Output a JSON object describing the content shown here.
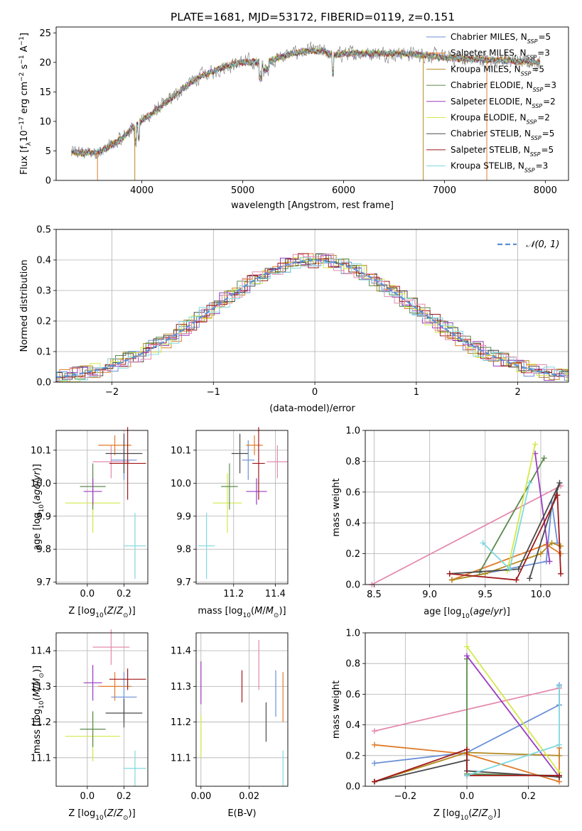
{
  "figure_title": "PLATE=1681, MJD=53172, FIBERID=0119, z=0.151",
  "colors": {
    "Chabrier MILES": "#6a8fd6",
    "Salpeter MILES": "#e07b2a",
    "Kroupa MILES": "#b48a1e",
    "Chabrier ELODIE": "#5a8a4a",
    "Salpeter ELODIE": "#9a3cbf",
    "Kroupa ELODIE": "#d4e84a",
    "Chabrier STELIB": "#4a4a4a",
    "Salpeter STELIB": "#a01818",
    "Kroupa STELIB": "#7fd8e0",
    "extra_pink": "#e48aae",
    "normal_curve": "#5b8ed6"
  },
  "chart_data": [
    {
      "type": "line",
      "id": "spectrum",
      "xlabel": "wavelength [Angstrom, rest frame]",
      "ylabel": "Flux [f_λ 10^-17 erg cm^-2 s^-1 A^-1]",
      "xlim": [
        3150,
        8230
      ],
      "ylim": [
        0,
        26
      ],
      "xticks": [
        4000,
        5000,
        6000,
        7000,
        8000
      ],
      "yticks": [
        0,
        5,
        10,
        15,
        20,
        25
      ],
      "grid": false,
      "legend_position": "upper-right",
      "legend": [
        {
          "name": "Chabrier MILES",
          "label": "Chabrier MILES, N",
          "sub": "SSP",
          "suffix": "=5"
        },
        {
          "name": "Salpeter MILES",
          "label": "Salpeter MILES, N",
          "sub": "SSP",
          "suffix": "=3"
        },
        {
          "name": "Kroupa MILES",
          "label": "Kroupa MILES, N",
          "sub": "SSP",
          "suffix": "=5"
        },
        {
          "name": "Chabrier ELODIE",
          "label": "Chabrier ELODIE, N",
          "sub": "SSP",
          "suffix": "=3"
        },
        {
          "name": "Salpeter ELODIE",
          "label": "Salpeter ELODIE, N",
          "sub": "SSP",
          "suffix": "=2"
        },
        {
          "name": "Kroupa ELODIE",
          "label": "Kroupa ELODIE, N",
          "sub": "SSP",
          "suffix": "=2"
        },
        {
          "name": "Chabrier STELIB",
          "label": "Chabrier STELIB, N",
          "sub": "SSP",
          "suffix": "=5"
        },
        {
          "name": "Salpeter STELIB",
          "label": "Salpeter STELIB, N",
          "sub": "SSP",
          "suffix": "=5"
        },
        {
          "name": "Kroupa STELIB",
          "label": "Kroupa STELIB, N",
          "sub": "SSP",
          "suffix": "=3"
        }
      ],
      "envelope": [
        [
          3300,
          4.8
        ],
        [
          3400,
          4.6
        ],
        [
          3500,
          4.7
        ],
        [
          3600,
          4.9
        ],
        [
          3700,
          6.0
        ],
        [
          3800,
          7.0
        ],
        [
          3900,
          8.8
        ],
        [
          4000,
          10.2
        ],
        [
          4100,
          11.3
        ],
        [
          4200,
          12.6
        ],
        [
          4300,
          14.0
        ],
        [
          4400,
          15.5
        ],
        [
          4500,
          16.8
        ],
        [
          4600,
          17.8
        ],
        [
          4700,
          18.4
        ],
        [
          4800,
          19.2
        ],
        [
          4900,
          19.7
        ],
        [
          5000,
          20.0
        ],
        [
          5100,
          20.1
        ],
        [
          5200,
          19.8
        ],
        [
          5300,
          20.4
        ],
        [
          5400,
          21.0
        ],
        [
          5500,
          21.5
        ],
        [
          5600,
          21.8
        ],
        [
          5700,
          22.0
        ],
        [
          5800,
          21.8
        ],
        [
          5900,
          21.2
        ],
        [
          6000,
          21.5
        ],
        [
          6200,
          21.6
        ],
        [
          6400,
          21.5
        ],
        [
          6600,
          21.5
        ],
        [
          6800,
          21.3
        ],
        [
          7000,
          20.8
        ],
        [
          7200,
          20.6
        ],
        [
          7400,
          20.5
        ],
        [
          7600,
          20.3
        ],
        [
          7800,
          20.1
        ],
        [
          7950,
          20.0
        ]
      ],
      "spike_lines": [
        {
          "series": "Salpeter MILES",
          "x": 3560
        },
        {
          "series": "Kroupa MILES",
          "x": 3930
        },
        {
          "series": "Kroupa MILES",
          "x": 6790
        },
        {
          "series": "Salpeter MILES",
          "x": 7420
        }
      ]
    },
    {
      "type": "line",
      "id": "residuals",
      "xlabel": "(data-model)/error",
      "ylabel": "Normed distribution",
      "xlim": [
        -2.55,
        2.5
      ],
      "ylim": [
        0,
        0.5
      ],
      "xticks": [
        -2,
        -1,
        0,
        1,
        2
      ],
      "xtick_labels": [
        "−2",
        "−1",
        "0",
        "1",
        "2"
      ],
      "yticks": [
        0.0,
        0.1,
        0.2,
        0.3,
        0.4,
        0.5
      ],
      "grid": true,
      "legend_position": "upper-right",
      "legend": [
        {
          "name": "normal",
          "label": "𝒩(0, 1)"
        }
      ],
      "bin_width": 0.1
    },
    {
      "type": "scatter",
      "id": "age_vs_Z",
      "xlabel": "Z [log10(Z/Z☉)]",
      "ylabel": "age [log10(age/yr)]",
      "xlim": [
        -0.17,
        0.33
      ],
      "ylim": [
        9.695,
        10.16
      ],
      "xticks": [
        0.0,
        0.2
      ],
      "xtick_labels": [
        "0.0",
        "0.2"
      ],
      "yticks": [
        9.7,
        9.8,
        9.9,
        10.0,
        10.1
      ],
      "ytick_labels": [
        "9.7",
        "9.8",
        "9.9",
        "10.0",
        "10.1"
      ],
      "grid": true,
      "points": [
        {
          "series": "Kroupa ELODIE",
          "x": 0.03,
          "xerr": 0.15,
          "y": 9.94,
          "yerr": 0.09
        },
        {
          "series": "Chabrier ELODIE",
          "x": 0.03,
          "xerr": 0.07,
          "y": 9.99,
          "yerr": 0.07
        },
        {
          "series": "Salpeter ELODIE",
          "x": 0.03,
          "xerr": 0.05,
          "y": 9.975,
          "yerr": 0.04
        },
        {
          "series": "extra_pink",
          "x": 0.13,
          "xerr": 0.1,
          "y": 10.065,
          "yerr": 0.05
        },
        {
          "series": "Salpeter MILES",
          "x": 0.15,
          "xerr": 0.09,
          "y": 10.115,
          "yerr": 0.03
        },
        {
          "series": "Chabrier MILES",
          "x": 0.2,
          "xerr": 0.07,
          "y": 10.07,
          "yerr": 0.06
        },
        {
          "series": "Chabrier STELIB",
          "x": 0.2,
          "xerr": 0.1,
          "y": 10.09,
          "yerr": 0.06
        },
        {
          "series": "Salpeter STELIB",
          "x": 0.22,
          "xerr": 0.1,
          "y": 10.06,
          "yerr": 0.11
        },
        {
          "series": "Kroupa STELIB",
          "x": 0.26,
          "xerr": 0.06,
          "y": 9.81,
          "yerr": 0.1
        }
      ]
    },
    {
      "type": "scatter",
      "id": "age_vs_mass",
      "xlabel": "mass [log10(M/M☉)]",
      "ylabel": "",
      "xlim": [
        11.02,
        11.46
      ],
      "ylim": [
        9.695,
        10.16
      ],
      "xticks": [
        11.2,
        11.4
      ],
      "xtick_labels": [
        "11.2",
        "11.4"
      ],
      "yticks": [
        9.7,
        9.8,
        9.9,
        10.0,
        10.1
      ],
      "ytick_labels": [
        "9.7",
        "9.8",
        "9.9",
        "10.0",
        "10.1"
      ],
      "grid": true,
      "points": [
        {
          "series": "Kroupa STELIB",
          "x": 11.07,
          "xerr": 0.04,
          "y": 9.81,
          "yerr": 0.1
        },
        {
          "series": "Kroupa ELODIE",
          "x": 11.17,
          "xerr": 0.07,
          "y": 9.94,
          "yerr": 0.09
        },
        {
          "series": "Chabrier ELODIE",
          "x": 11.18,
          "xerr": 0.04,
          "y": 9.99,
          "yerr": 0.07
        },
        {
          "series": "Chabrier STELIB",
          "x": 11.23,
          "xerr": 0.04,
          "y": 10.09,
          "yerr": 0.06
        },
        {
          "series": "Chabrier MILES",
          "x": 11.27,
          "xerr": 0.03,
          "y": 10.07,
          "yerr": 0.06
        },
        {
          "series": "Salpeter MILES",
          "x": 11.3,
          "xerr": 0.04,
          "y": 10.115,
          "yerr": 0.03
        },
        {
          "series": "Salpeter ELODIE",
          "x": 11.31,
          "xerr": 0.05,
          "y": 9.975,
          "yerr": 0.04
        },
        {
          "series": "Salpeter STELIB",
          "x": 11.32,
          "xerr": 0.03,
          "y": 10.06,
          "yerr": 0.11
        },
        {
          "series": "extra_pink",
          "x": 11.41,
          "xerr": 0.05,
          "y": 10.065,
          "yerr": 0.05
        }
      ]
    },
    {
      "type": "line",
      "id": "weight_vs_age",
      "xlabel": "age [log10(age/yr)]",
      "ylabel": "mass weight",
      "xlim": [
        8.42,
        10.25
      ],
      "ylim": [
        0,
        1
      ],
      "xticks": [
        8.5,
        9.0,
        9.5,
        10.0
      ],
      "xtick_labels": [
        "8.5",
        "9.0",
        "9.5",
        "10.0"
      ],
      "yticks": [
        0.0,
        0.2,
        0.4,
        0.6,
        0.8,
        1.0
      ],
      "ytick_labels": [
        "0.0",
        "0.2",
        "0.4",
        "0.6",
        "0.8",
        "1.0"
      ],
      "grid": true,
      "series": [
        {
          "name": "extra_pink",
          "x": [
            8.48,
            10.18
          ],
          "y": [
            0.0,
            0.64
          ]
        },
        {
          "name": "Chabrier MILES",
          "x": [
            9.2,
            10.05,
            10.1,
            10.15
          ],
          "y": [
            0.03,
            0.15,
            0.53,
            0.27
          ]
        },
        {
          "name": "Salpeter MILES",
          "x": [
            9.2,
            10.05,
            10.18
          ],
          "y": [
            0.03,
            0.26,
            0.2
          ]
        },
        {
          "name": "Kroupa MILES",
          "x": [
            9.2,
            9.5,
            10.0,
            10.1,
            10.18
          ],
          "y": [
            0.03,
            0.07,
            0.2,
            0.27,
            0.25
          ]
        },
        {
          "name": "Chabrier ELODIE",
          "x": [
            9.45,
            10.03
          ],
          "y": [
            0.08,
            0.82
          ]
        },
        {
          "name": "Salpeter ELODIE",
          "x": [
            9.95,
            10.08
          ],
          "y": [
            0.85,
            0.15
          ]
        },
        {
          "name": "Kroupa ELODIE",
          "x": [
            9.7,
            9.95
          ],
          "y": [
            0.09,
            0.91
          ]
        },
        {
          "name": "Chabrier STELIB",
          "x": [
            9.18,
            9.8,
            10.17,
            9.9
          ],
          "y": [
            0.07,
            0.1,
            0.66,
            0.04
          ]
        },
        {
          "name": "Salpeter STELIB",
          "x": [
            9.18,
            9.78,
            10.15,
            10.18
          ],
          "y": [
            0.07,
            0.03,
            0.58,
            0.07
          ]
        },
        {
          "name": "Kroupa STELIB",
          "x": [
            9.48,
            9.72,
            9.9
          ],
          "y": [
            0.27,
            0.1,
            0.66
          ]
        }
      ]
    },
    {
      "type": "scatter",
      "id": "mass_vs_Z",
      "xlabel": "Z [log10(Z/Z☉)]",
      "ylabel": "mass [log10(M/M☉)]",
      "xlim": [
        -0.17,
        0.33
      ],
      "ylim": [
        11.02,
        11.45
      ],
      "xticks": [
        0.0,
        0.2
      ],
      "xtick_labels": [
        "0.0",
        "0.2"
      ],
      "yticks": [
        11.1,
        11.2,
        11.3,
        11.4
      ],
      "ytick_labels": [
        "11.1",
        "11.2",
        "11.3",
        "11.4"
      ],
      "grid": true,
      "points": [
        {
          "series": "Kroupa ELODIE",
          "x": 0.03,
          "xerr": 0.15,
          "y": 11.16,
          "yerr": 0.07
        },
        {
          "series": "Chabrier ELODIE",
          "x": 0.03,
          "xerr": 0.07,
          "y": 11.18,
          "yerr": 0.05
        },
        {
          "series": "Salpeter ELODIE",
          "x": 0.03,
          "xerr": 0.05,
          "y": 11.31,
          "yerr": 0.05
        },
        {
          "series": "extra_pink",
          "x": 0.13,
          "xerr": 0.1,
          "y": 11.41,
          "yerr": 0.05
        },
        {
          "series": "Salpeter MILES",
          "x": 0.15,
          "xerr": 0.09,
          "y": 11.3,
          "yerr": 0.04
        },
        {
          "series": "Chabrier MILES",
          "x": 0.2,
          "xerr": 0.07,
          "y": 11.27,
          "yerr": 0.07
        },
        {
          "series": "Chabrier STELIB",
          "x": 0.2,
          "xerr": 0.1,
          "y": 11.225,
          "yerr": 0.04
        },
        {
          "series": "Salpeter STELIB",
          "x": 0.22,
          "xerr": 0.1,
          "y": 11.32,
          "yerr": 0.03
        },
        {
          "series": "Kroupa STELIB",
          "x": 0.26,
          "xerr": 0.06,
          "y": 11.07,
          "yerr": 0.05
        }
      ]
    },
    {
      "type": "scatter",
      "id": "mass_vs_ebv",
      "xlabel": "E(B-V)",
      "ylabel": "",
      "xlim": [
        -0.002,
        0.036
      ],
      "ylim": [
        11.02,
        11.45
      ],
      "xticks": [
        0.0,
        0.02
      ],
      "xtick_labels": [
        "0.00",
        "0.02"
      ],
      "yticks": [
        11.1,
        11.2,
        11.3,
        11.4
      ],
      "ytick_labels": [
        "11.1",
        "11.2",
        "11.3",
        "11.4"
      ],
      "grid": true,
      "points": [
        {
          "series": "Salpeter ELODIE",
          "x": 0.0,
          "y": 11.31,
          "yerr": 0.06
        },
        {
          "series": "Kroupa ELODIE",
          "x": 0.0,
          "y": 11.16,
          "yerr": 0.06
        },
        {
          "series": "Salpeter STELIB",
          "x": 0.017,
          "y": 11.3,
          "yerr": 0.045
        },
        {
          "series": "extra_pink",
          "x": 0.024,
          "y": 11.36,
          "yerr": 0.07
        },
        {
          "series": "Chabrier STELIB",
          "x": 0.027,
          "y": 11.2,
          "yerr": 0.055
        },
        {
          "series": "Chabrier MILES",
          "x": 0.031,
          "y": 11.28,
          "yerr": 0.065
        },
        {
          "series": "Salpeter MILES",
          "x": 0.034,
          "y": 11.27,
          "yerr": 0.07
        },
        {
          "series": "Kroupa STELIB",
          "x": 0.034,
          "y": 11.07,
          "yerr": 0.05
        }
      ]
    },
    {
      "type": "line",
      "id": "weight_vs_Z",
      "xlabel": "Z [log10(Z/Z☉)]",
      "ylabel": "mass weight",
      "xlim": [
        -0.33,
        0.33
      ],
      "ylim": [
        0,
        1
      ],
      "xticks": [
        -0.2,
        0.0,
        0.2
      ],
      "xtick_labels": [
        "−0.2",
        "0.0",
        "0.2"
      ],
      "yticks": [
        0.0,
        0.2,
        0.4,
        0.6,
        0.8,
        1.0
      ],
      "ytick_labels": [
        "0.0",
        "0.2",
        "0.4",
        "0.6",
        "0.8",
        "1.0"
      ],
      "grid": true,
      "series": [
        {
          "name": "extra_pink",
          "x": [
            -0.3,
            0.3
          ],
          "y": [
            0.36,
            0.64
          ]
        },
        {
          "name": "Chabrier MILES",
          "x": [
            -0.3,
            0.0,
            0.3,
            0.3
          ],
          "y": [
            0.15,
            0.22,
            0.53,
            0.66
          ]
        },
        {
          "name": "Salpeter MILES",
          "x": [
            -0.3,
            0.0,
            0.3,
            0.3
          ],
          "y": [
            0.27,
            0.21,
            0.03,
            0.25
          ]
        },
        {
          "name": "Kroupa MILES",
          "x": [
            -0.3,
            0.0,
            0.3
          ],
          "y": [
            0.03,
            0.22,
            0.2
          ]
        },
        {
          "name": "Chabrier ELODIE",
          "x": [
            0.0,
            0.0,
            0.3
          ],
          "y": [
            0.83,
            0.08,
            0.07
          ]
        },
        {
          "name": "Salpeter ELODIE",
          "x": [
            0.0,
            0.3
          ],
          "y": [
            0.85,
            0.06
          ]
        },
        {
          "name": "Kroupa ELODIE",
          "x": [
            0.0,
            0.3
          ],
          "y": [
            0.91,
            0.09
          ]
        },
        {
          "name": "Chabrier STELIB",
          "x": [
            -0.3,
            0.0,
            0.0,
            0.3
          ],
          "y": [
            0.03,
            0.17,
            0.1,
            0.06
          ]
        },
        {
          "name": "Salpeter STELIB",
          "x": [
            -0.3,
            0.0,
            0.0,
            0.3
          ],
          "y": [
            0.03,
            0.24,
            0.07,
            0.07
          ]
        },
        {
          "name": "Kroupa STELIB",
          "x": [
            0.0,
            0.3,
            0.3
          ],
          "y": [
            0.07,
            0.27,
            0.65
          ]
        }
      ]
    }
  ]
}
